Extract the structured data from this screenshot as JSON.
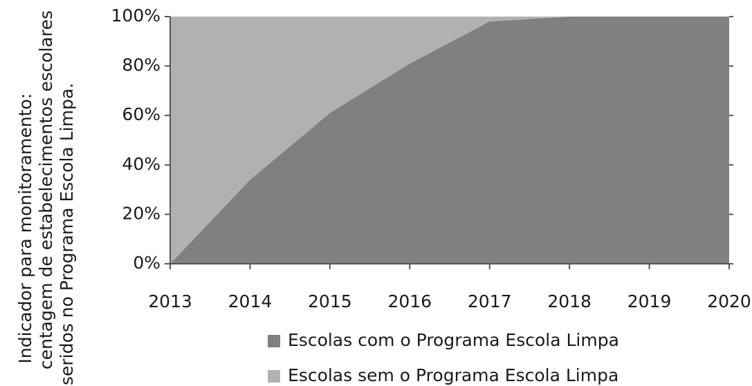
{
  "chart_data": {
    "type": "area",
    "y_label_lines": [
      "Indicador para monitoramento:",
      "centagem de estabelecimentos escolares",
      "seridos no Programa Escola Limpa."
    ],
    "x": [
      2013,
      2014,
      2015,
      2016,
      2017,
      2018,
      2019,
      2020
    ],
    "xlim": [
      2013,
      2020
    ],
    "xticks": [
      2013,
      2014,
      2015,
      2016,
      2017,
      2018,
      2019,
      2020
    ],
    "ylim": [
      0,
      100
    ],
    "yticks": [
      {
        "value": 0,
        "label": "0%"
      },
      {
        "value": 20,
        "label": "20%"
      },
      {
        "value": 40,
        "label": "40%"
      },
      {
        "value": 60,
        "label": "60%"
      },
      {
        "value": 80,
        "label": "80%"
      },
      {
        "value": 100,
        "label": "100%"
      }
    ],
    "stacked": true,
    "series": [
      {
        "name": "Escolas com o Programa Escola Limpa",
        "color": "#808083",
        "values": [
          0,
          34,
          61,
          81,
          98,
          100,
          100,
          100
        ]
      },
      {
        "name": "Escolas sem o Programa Escola Limpa",
        "color": "#b1b1b3",
        "values": [
          100,
          66,
          39,
          19,
          2,
          0,
          0,
          0
        ]
      }
    ]
  }
}
